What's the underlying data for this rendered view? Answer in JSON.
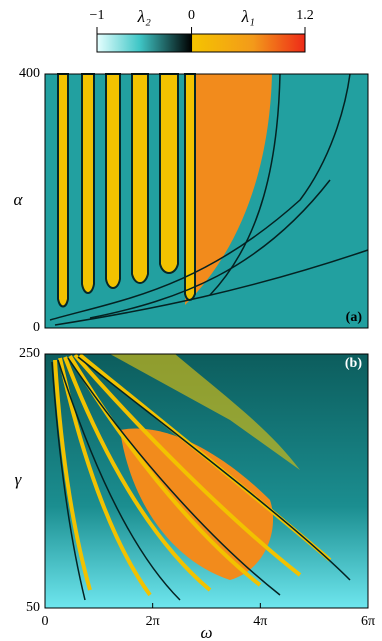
{
  "chart_data": [
    {
      "type": "colorbar",
      "neg_label": "λ₂",
      "pos_label": "λ₁",
      "clim": [
        -1,
        1.2
      ],
      "cticks": [
        {
          "value": -1,
          "label": "−1"
        },
        0,
        1.2
      ]
    },
    {
      "type": "heatmap",
      "panel_label": "(a)",
      "ylabel": "α",
      "ylim": [
        0,
        400
      ],
      "yticks": [
        0,
        400
      ],
      "xlim": [
        0,
        18.84955592153876
      ]
    },
    {
      "type": "heatmap",
      "panel_label": "(b)",
      "ylabel": "γ",
      "xlabel": "ω",
      "ylim": [
        50,
        250
      ],
      "yticks": [
        50,
        250
      ],
      "xlim": [
        0,
        18.84955592153876
      ],
      "xticks": [
        0,
        {
          "value": 6.283185307179586,
          "label": "2π"
        },
        {
          "value": 12.566370614359172,
          "label": "4π"
        },
        {
          "value": 18.84955592153876,
          "label": "6π"
        }
      ]
    }
  ]
}
